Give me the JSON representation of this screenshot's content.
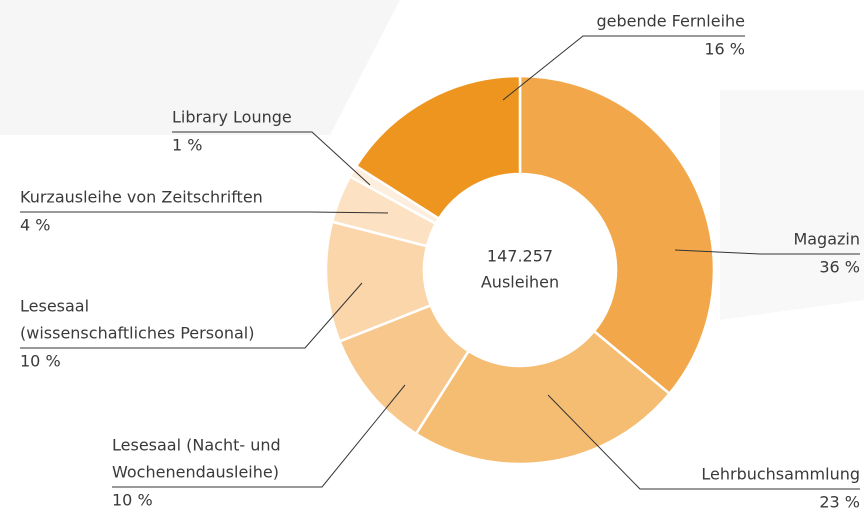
{
  "chart_data": {
    "type": "donut",
    "categories": [
      [
        "Magazin"
      ],
      [
        "Lehrbuchsammlung"
      ],
      [
        "Lesesaal (Nacht- und",
        "Wochenendausleihe)"
      ],
      [
        "Lesesaal",
        "(wissenschaftliches Personal)"
      ],
      [
        "Kurzausleihe von Zeitschriften"
      ],
      [
        "Library Lounge"
      ],
      [
        "gebende Fernleihe"
      ]
    ],
    "values": [
      36,
      23,
      10,
      10,
      4,
      1,
      16
    ],
    "value_labels": [
      "36 %",
      "23 %",
      "10 %",
      "10 %",
      "4 %",
      "1 %",
      "16 %"
    ],
    "colors": [
      "#f2a84a",
      "#f5bd72",
      "#f8c78c",
      "#fad6aa",
      "#fce2c3",
      "#fdeedd",
      "#ee9520"
    ],
    "total": 147257,
    "total_label": "147.257",
    "center_caption": "Ausleihen"
  }
}
